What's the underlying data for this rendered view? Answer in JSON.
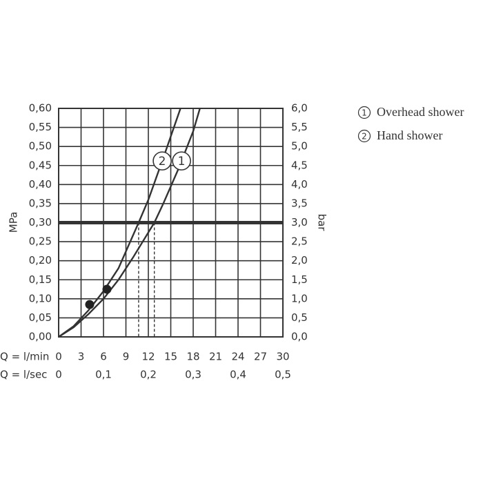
{
  "chart_data": {
    "type": "line",
    "y_label": "MPa",
    "y2_label": "bar",
    "x_label": "Q = l/min",
    "x2_label": "Q = l/sec",
    "xlim": [
      0,
      30
    ],
    "xticks": [
      0,
      3,
      6,
      9,
      12,
      15,
      18,
      21,
      24,
      27,
      30
    ],
    "x2lim": [
      0,
      0.5
    ],
    "x2ticks": [
      0,
      {
        "value": 0.1,
        "label": "0,1"
      },
      {
        "value": 0.2,
        "label": "0,2"
      },
      {
        "value": 0.3,
        "label": "0,3"
      },
      {
        "value": 0.4,
        "label": "0,4"
      },
      {
        "value": 0.5,
        "label": "0,5"
      }
    ],
    "ylim": [
      0,
      0.6
    ],
    "yticks": [
      {
        "value": 0,
        "label": "0,00"
      },
      {
        "value": 0.05,
        "label": "0,05"
      },
      {
        "value": 0.1,
        "label": "0,10"
      },
      {
        "value": 0.15,
        "label": "0,15"
      },
      {
        "value": 0.2,
        "label": "0,20"
      },
      {
        "value": 0.25,
        "label": "0,25"
      },
      {
        "value": 0.3,
        "label": "0,30"
      },
      {
        "value": 0.35,
        "label": "0,35"
      },
      {
        "value": 0.4,
        "label": "0,40"
      },
      {
        "value": 0.45,
        "label": "0,45"
      },
      {
        "value": 0.5,
        "label": "0,50"
      },
      {
        "value": 0.55,
        "label": "0,55"
      },
      {
        "value": 0.6,
        "label": "0,60"
      }
    ],
    "y2lim": [
      0,
      6
    ],
    "y2ticks": [
      {
        "value": 0,
        "label": "0,0"
      },
      {
        "value": 0.5,
        "label": "0,5"
      },
      {
        "value": 1,
        "label": "1,0"
      },
      {
        "value": 1.5,
        "label": "1,5"
      },
      {
        "value": 2,
        "label": "2,0"
      },
      {
        "value": 2.5,
        "label": "2,5"
      },
      {
        "value": 3,
        "label": "3,0"
      },
      {
        "value": 3.5,
        "label": "3,5"
      },
      {
        "value": 4,
        "label": "4,0"
      },
      {
        "value": 4.5,
        "label": "4,5"
      },
      {
        "value": 5,
        "label": "5,0"
      },
      {
        "value": 5.5,
        "label": "5,5"
      },
      {
        "value": 6,
        "label": "6,0"
      }
    ],
    "grid": true,
    "reference_line": 0.3,
    "drop_lines": [
      10.7,
      12.8
    ],
    "series": [
      {
        "name": "Overhead shower",
        "marker_label": "1",
        "color": "#333333",
        "x": [
          0,
          2,
          4,
          6,
          8,
          10,
          12.8,
          14,
          16,
          18,
          18.9
        ],
        "values": [
          0,
          0.025,
          0.06,
          0.1,
          0.15,
          0.21,
          0.3,
          0.35,
          0.44,
          0.54,
          0.6
        ]
      },
      {
        "name": "Hand shower",
        "marker_label": "2",
        "color": "#333333",
        "x": [
          0,
          2,
          4,
          6,
          8,
          10.7,
          12,
          14,
          16.3
        ],
        "values": [
          0,
          0.028,
          0.07,
          0.12,
          0.18,
          0.3,
          0.36,
          0.47,
          0.6
        ]
      }
    ],
    "operating_points": {
      "x": [
        4.15,
        6.46
      ],
      "values": [
        0.085,
        0.125
      ]
    }
  }
}
